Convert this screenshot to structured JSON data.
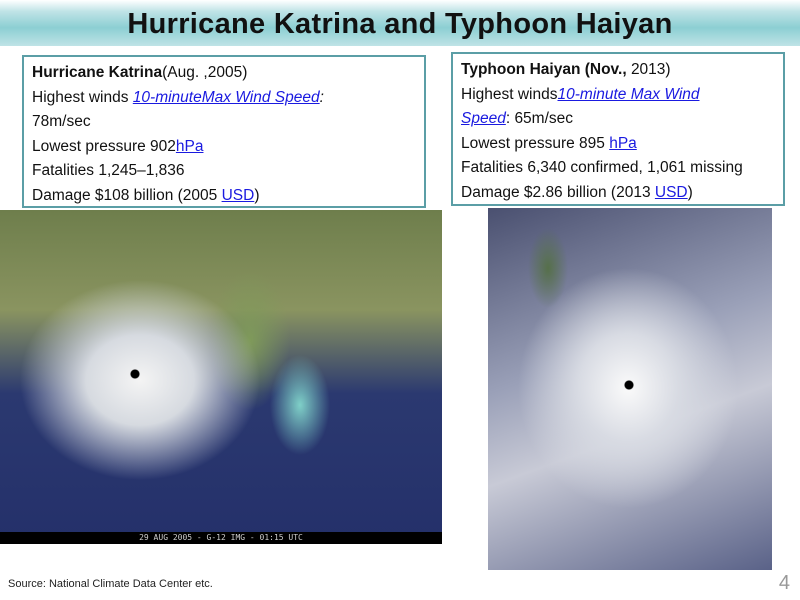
{
  "title": "Hurricane Katrina and Typhoon Haiyan",
  "katrina": {
    "name": "Hurricane Katrina",
    "date": "(Aug. ,2005)",
    "winds_label": "Highest winds ",
    "winds_link": "10-minuteMax Wind Speed",
    "winds_value": "78m/sec",
    "pressure_label": "Lowest pressure 902",
    "pressure_unit": "hPa",
    "fatalities": "Fatalities 1,245–1,836",
    "damage_label": "Damage $108 billion (2005 ",
    "damage_unit": "USD",
    "damage_close": ")",
    "image_caption": "29 AUG 2005 - G-12 IMG - 01:15 UTC"
  },
  "haiyan": {
    "name": "Typhoon Haiyan (Nov., ",
    "date": "2013)",
    "winds_label": "Highest winds",
    "winds_link_1": "10-minute Max Wind",
    "winds_link_2": "Speed",
    "winds_value": ": 65m/sec",
    "pressure_label": "Lowest pressure 895 ",
    "pressure_unit": "hPa",
    "fatalities": "Fatalities 6,340 confirmed, 1,061 missing",
    "damage_label": "Damage $2.86 billion (2013 ",
    "damage_unit": "USD",
    "damage_close": ")"
  },
  "source": "Source: National Climate Data Center  etc.",
  "page_number": "4"
}
